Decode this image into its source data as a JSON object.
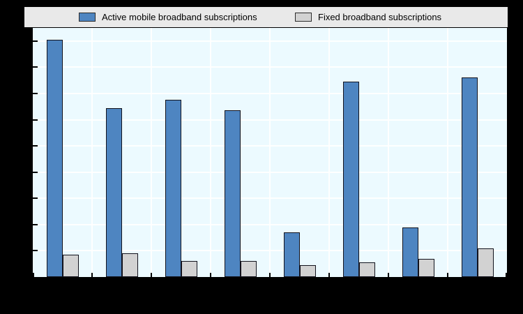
{
  "page": {
    "background_color": "#000000",
    "note_visible_text_only": "Axis tick labels and category labels are not legible in the image (rendered black on black); only legend text is visible."
  },
  "legend": {
    "background_color": "#e9e9e9",
    "items": [
      {
        "label": "Active mobile broadband subscriptions",
        "color": "#4e85c1"
      },
      {
        "label": "Fixed broadband subscriptions",
        "color": "#d2d2d2"
      }
    ]
  },
  "chart_data": {
    "type": "bar",
    "title": "",
    "xlabel": "",
    "ylabel": "",
    "categories": [
      "",
      "",
      "",
      "",
      "",
      "",
      "",
      ""
    ],
    "series": [
      {
        "name": "Active mobile broadband subscriptions",
        "color": "#4e85c1",
        "values": [
          90.5,
          64.5,
          67.5,
          63.5,
          17,
          74.5,
          19,
          76
        ]
      },
      {
        "name": "Fixed broadband subscriptions",
        "color": "#d2d2d2",
        "values": [
          8.5,
          9,
          6,
          6,
          4.5,
          5.5,
          7,
          11
        ]
      }
    ],
    "ylim": [
      0,
      95
    ],
    "ytick_interval": 10,
    "grid": true,
    "legend_position": "top",
    "plot_background": "#ecfaff",
    "gridline_color": "#ffffff",
    "bar_border_color": "#12121c"
  }
}
